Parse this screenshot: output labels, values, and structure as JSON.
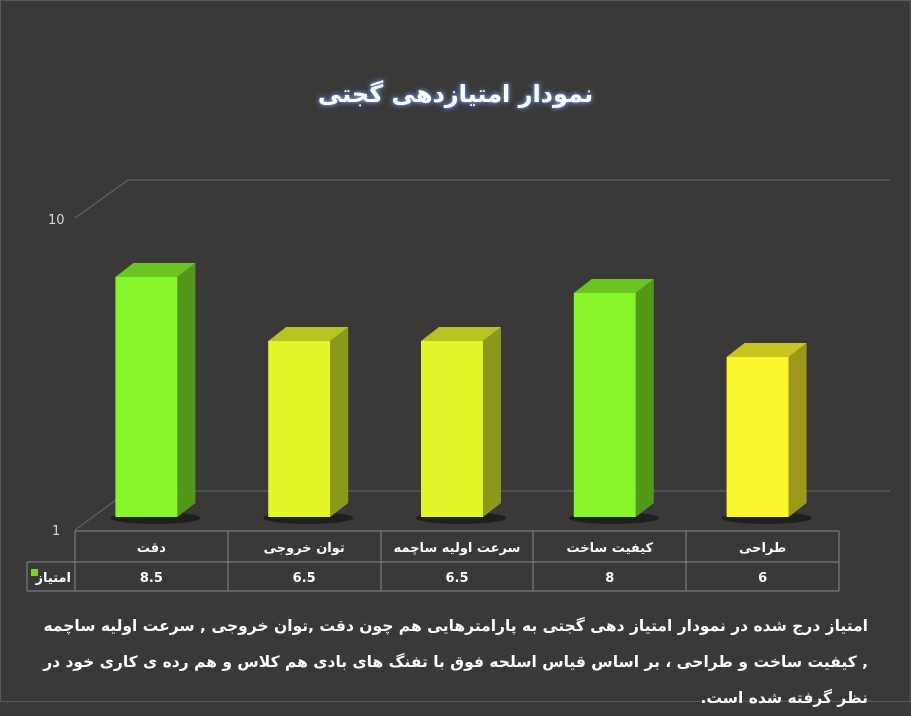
{
  "chart_data": {
    "type": "bar",
    "title": "نمودار امتیازدهی گجتی",
    "categories": [
      "دقت",
      "توان خروجی",
      "سرعت اولیه ساچمه",
      "کیفیت ساخت",
      "طراحی"
    ],
    "series": [
      {
        "name": "امتیاز",
        "values": [
          8.5,
          6.5,
          6.5,
          8,
          6
        ]
      }
    ],
    "value_labels": [
      "8.5",
      "6.5",
      "6.5",
      "8",
      "6"
    ],
    "ylim": [
      1,
      10
    ],
    "yticks": [
      "1",
      "10"
    ],
    "grid": false,
    "legend": "data-table",
    "colors": {
      "bright_green": "#86f52a",
      "lime": "#e2f52a",
      "yellow": "#fdf52c",
      "legend_key": "#7ad32b"
    },
    "bar_colors": [
      "bright_green",
      "lime",
      "lime",
      "bright_green",
      "yellow"
    ]
  },
  "description": "امتیاز درج شده در نمودار امتیاز دهی گجتی  به پارامترهایی هم چون دقت ,توان خروجی , سرعت اولیه ساچمه , کیفیت ساخت و طراحی ، بر اساس قیاس اسلحه فوق با تفنگ های بادی هم کلاس و هم رده ی کاری خود در نظر گرفته شده است."
}
